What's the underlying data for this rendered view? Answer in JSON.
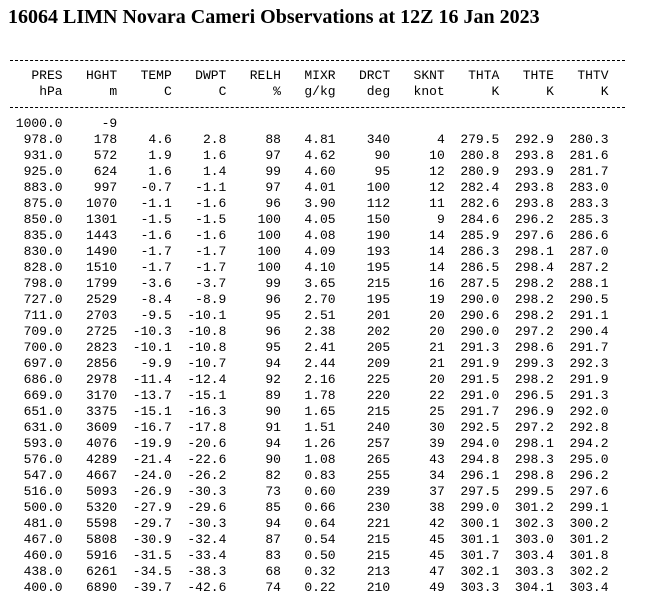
{
  "title": "16064 LIMN Novara Cameri Observations at 12Z 16 Jan 2023",
  "table": {
    "columns": [
      "PRES",
      "HGHT",
      "TEMP",
      "DWPT",
      "RELH",
      "MIXR",
      "DRCT",
      "SKNT",
      "THTA",
      "THTE",
      "THTV"
    ],
    "units": [
      "hPa",
      "m",
      "C",
      "C",
      "%",
      "g/kg",
      "deg",
      "knot",
      "K",
      "K",
      "K"
    ],
    "rows": [
      [
        "1000.0",
        "-9"
      ],
      [
        "978.0",
        "178",
        "4.6",
        "2.8",
        "88",
        "4.81",
        "340",
        "4",
        "279.5",
        "292.9",
        "280.3"
      ],
      [
        "931.0",
        "572",
        "1.9",
        "1.6",
        "97",
        "4.62",
        "90",
        "10",
        "280.8",
        "293.8",
        "281.6"
      ],
      [
        "925.0",
        "624",
        "1.6",
        "1.4",
        "99",
        "4.60",
        "95",
        "12",
        "280.9",
        "293.9",
        "281.7"
      ],
      [
        "883.0",
        "997",
        "-0.7",
        "-1.1",
        "97",
        "4.01",
        "100",
        "12",
        "282.4",
        "293.8",
        "283.0"
      ],
      [
        "875.0",
        "1070",
        "-1.1",
        "-1.6",
        "96",
        "3.90",
        "112",
        "11",
        "282.6",
        "293.8",
        "283.3"
      ],
      [
        "850.0",
        "1301",
        "-1.5",
        "-1.5",
        "100",
        "4.05",
        "150",
        "9",
        "284.6",
        "296.2",
        "285.3"
      ],
      [
        "835.0",
        "1443",
        "-1.6",
        "-1.6",
        "100",
        "4.08",
        "190",
        "14",
        "285.9",
        "297.6",
        "286.6"
      ],
      [
        "830.0",
        "1490",
        "-1.7",
        "-1.7",
        "100",
        "4.09",
        "193",
        "14",
        "286.3",
        "298.1",
        "287.0"
      ],
      [
        "828.0",
        "1510",
        "-1.7",
        "-1.7",
        "100",
        "4.10",
        "195",
        "14",
        "286.5",
        "298.4",
        "287.2"
      ],
      [
        "798.0",
        "1799",
        "-3.6",
        "-3.7",
        "99",
        "3.65",
        "215",
        "16",
        "287.5",
        "298.2",
        "288.1"
      ],
      [
        "727.0",
        "2529",
        "-8.4",
        "-8.9",
        "96",
        "2.70",
        "195",
        "19",
        "290.0",
        "298.2",
        "290.5"
      ],
      [
        "711.0",
        "2703",
        "-9.5",
        "-10.1",
        "95",
        "2.51",
        "201",
        "20",
        "290.6",
        "298.2",
        "291.1"
      ],
      [
        "709.0",
        "2725",
        "-10.3",
        "-10.8",
        "96",
        "2.38",
        "202",
        "20",
        "290.0",
        "297.2",
        "290.4"
      ],
      [
        "700.0",
        "2823",
        "-10.1",
        "-10.8",
        "95",
        "2.41",
        "205",
        "21",
        "291.3",
        "298.6",
        "291.7"
      ],
      [
        "697.0",
        "2856",
        "-9.9",
        "-10.7",
        "94",
        "2.44",
        "209",
        "21",
        "291.9",
        "299.3",
        "292.3"
      ],
      [
        "686.0",
        "2978",
        "-11.4",
        "-12.4",
        "92",
        "2.16",
        "225",
        "20",
        "291.5",
        "298.2",
        "291.9"
      ],
      [
        "669.0",
        "3170",
        "-13.7",
        "-15.1",
        "89",
        "1.78",
        "220",
        "22",
        "291.0",
        "296.5",
        "291.3"
      ],
      [
        "651.0",
        "3375",
        "-15.1",
        "-16.3",
        "90",
        "1.65",
        "215",
        "25",
        "291.7",
        "296.9",
        "292.0"
      ],
      [
        "631.0",
        "3609",
        "-16.7",
        "-17.8",
        "91",
        "1.51",
        "240",
        "30",
        "292.5",
        "297.2",
        "292.8"
      ],
      [
        "593.0",
        "4076",
        "-19.9",
        "-20.6",
        "94",
        "1.26",
        "257",
        "39",
        "294.0",
        "298.1",
        "294.2"
      ],
      [
        "576.0",
        "4289",
        "-21.4",
        "-22.6",
        "90",
        "1.08",
        "265",
        "43",
        "294.8",
        "298.3",
        "295.0"
      ],
      [
        "547.0",
        "4667",
        "-24.0",
        "-26.2",
        "82",
        "0.83",
        "255",
        "34",
        "296.1",
        "298.8",
        "296.2"
      ],
      [
        "516.0",
        "5093",
        "-26.9",
        "-30.3",
        "73",
        "0.60",
        "239",
        "37",
        "297.5",
        "299.5",
        "297.6"
      ],
      [
        "500.0",
        "5320",
        "-27.9",
        "-29.6",
        "85",
        "0.66",
        "230",
        "38",
        "299.0",
        "301.2",
        "299.1"
      ],
      [
        "481.0",
        "5598",
        "-29.7",
        "-30.3",
        "94",
        "0.64",
        "221",
        "42",
        "300.1",
        "302.3",
        "300.2"
      ],
      [
        "467.0",
        "5808",
        "-30.9",
        "-32.4",
        "87",
        "0.54",
        "215",
        "45",
        "301.1",
        "303.0",
        "301.2"
      ],
      [
        "460.0",
        "5916",
        "-31.5",
        "-33.4",
        "83",
        "0.50",
        "215",
        "45",
        "301.7",
        "303.4",
        "301.8"
      ],
      [
        "438.0",
        "6261",
        "-34.5",
        "-38.3",
        "68",
        "0.32",
        "213",
        "47",
        "302.1",
        "303.3",
        "302.2"
      ],
      [
        "400.0",
        "6890",
        "-39.7",
        "-42.6",
        "74",
        "0.22",
        "210",
        "49",
        "303.3",
        "304.1",
        "303.4"
      ]
    ]
  }
}
